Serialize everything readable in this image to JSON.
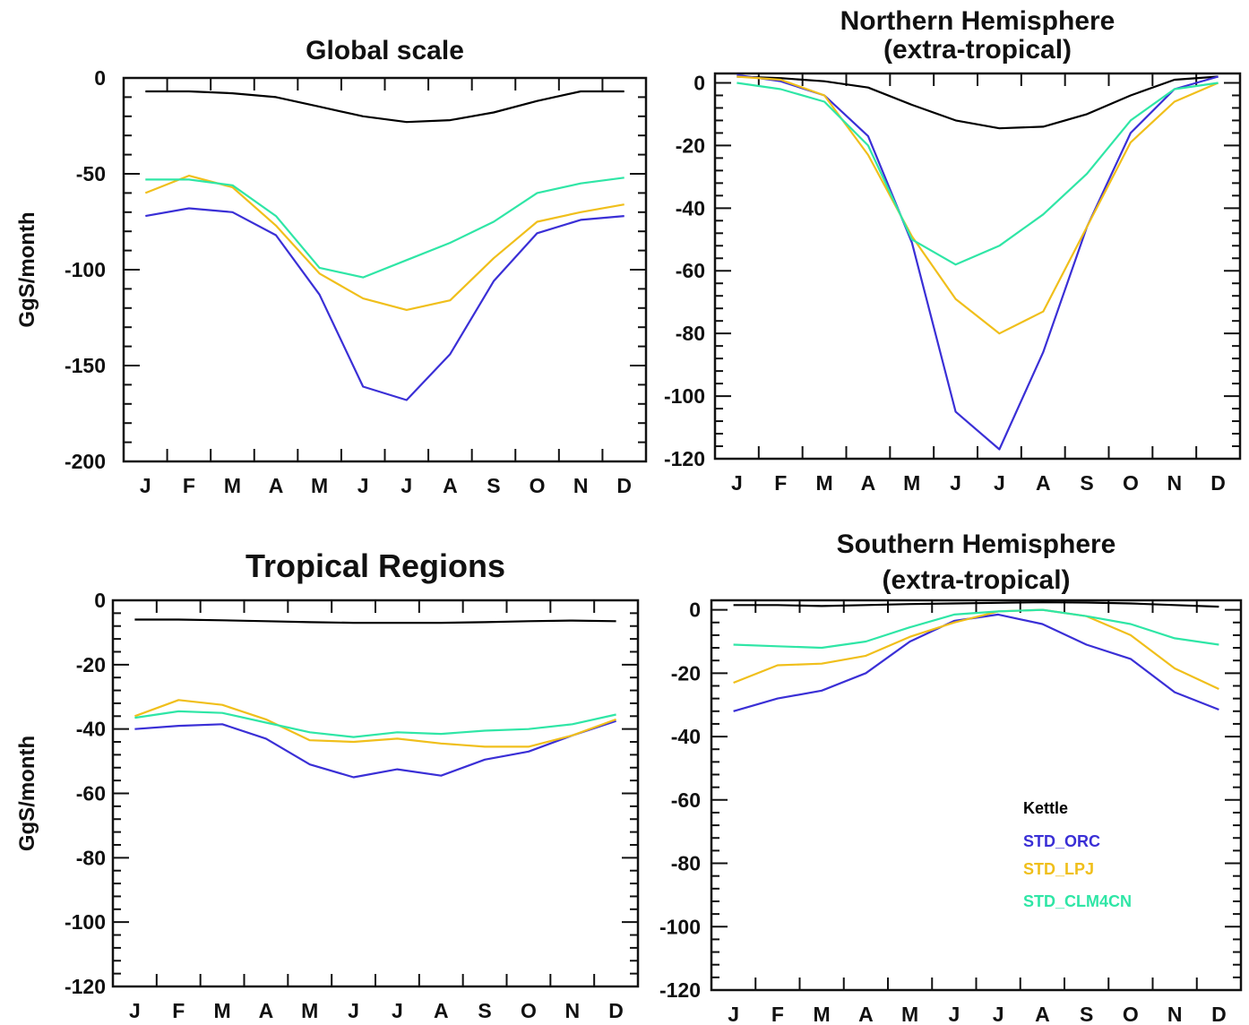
{
  "colors": {
    "Kettle": "#000000",
    "STD_ORC": "#3a2fd6",
    "STD_LPJ": "#f0bf1b",
    "STD_CLM4CN": "#2fe6a6"
  },
  "legend": [
    "Kettle",
    "STD_ORC",
    "STD_LPJ",
    "STD_CLM4CN"
  ],
  "chart_data": [
    {
      "type": "line",
      "title": [
        "Global scale"
      ],
      "ylabel": "GgS/month",
      "categories": [
        "J",
        "F",
        "M",
        "A",
        "M",
        "J",
        "J",
        "A",
        "S",
        "O",
        "N",
        "D"
      ],
      "ylim": [
        -200,
        0
      ],
      "yticks": [
        0,
        -50,
        -100,
        -150,
        -200
      ],
      "series": [
        {
          "name": "Kettle",
          "values": [
            -7,
            -7,
            -8,
            -10,
            -15,
            -20,
            -23,
            -22,
            -18,
            -12,
            -7,
            -7
          ]
        },
        {
          "name": "STD_ORC",
          "values": [
            -72,
            -68,
            -70,
            -82,
            -113,
            -161,
            -168,
            -144,
            -106,
            -81,
            -74,
            -72
          ]
        },
        {
          "name": "STD_LPJ",
          "values": [
            -60,
            -51,
            -57,
            -77,
            -102,
            -115,
            -121,
            -116,
            -94,
            -75,
            -70,
            -66
          ]
        },
        {
          "name": "STD_CLM4CN",
          "values": [
            -53,
            -53,
            -56,
            -72,
            -99,
            -104,
            -95,
            -86,
            -75,
            -60,
            -55,
            -52
          ]
        }
      ]
    },
    {
      "type": "line",
      "title": [
        "Northern Hemisphere",
        "(extra-tropical)"
      ],
      "ylabel": "",
      "categories": [
        "J",
        "F",
        "M",
        "A",
        "M",
        "J",
        "J",
        "A",
        "S",
        "O",
        "N",
        "D"
      ],
      "ylim": [
        -120,
        3
      ],
      "yticks": [
        0,
        -20,
        -40,
        -60,
        -80,
        -100,
        -120
      ],
      "series": [
        {
          "name": "Kettle",
          "values": [
            2,
            1.5,
            0.5,
            -1.5,
            -7,
            -12,
            -14.5,
            -14,
            -10,
            -4,
            1,
            2
          ]
        },
        {
          "name": "STD_ORC",
          "values": [
            2.5,
            0.5,
            -4,
            -17,
            -51,
            -105,
            -117,
            -86,
            -46,
            -16,
            -2,
            2
          ]
        },
        {
          "name": "STD_LPJ",
          "values": [
            2,
            1,
            -4,
            -23,
            -49,
            -69,
            -80,
            -73,
            -46,
            -19,
            -6,
            0
          ]
        },
        {
          "name": "STD_CLM4CN",
          "values": [
            0,
            -2,
            -6,
            -20,
            -50,
            -58,
            -52,
            -42,
            -29,
            -12,
            -2,
            0
          ]
        }
      ]
    },
    {
      "type": "line",
      "title": [
        "Tropical Regions"
      ],
      "ylabel": "GgS/month",
      "categories": [
        "J",
        "F",
        "M",
        "A",
        "M",
        "J",
        "J",
        "A",
        "S",
        "O",
        "N",
        "D"
      ],
      "ylim": [
        -120,
        0
      ],
      "yticks": [
        0,
        -20,
        -40,
        -60,
        -80,
        -100,
        -120
      ],
      "series": [
        {
          "name": "Kettle",
          "values": [
            -6,
            -6,
            -6.2,
            -6.5,
            -6.8,
            -7,
            -7,
            -7,
            -6.8,
            -6.5,
            -6.3,
            -6.5
          ]
        },
        {
          "name": "STD_ORC",
          "values": [
            -40,
            -39,
            -38.5,
            -43,
            -51,
            -55,
            -52.5,
            -54.5,
            -49.5,
            -47,
            -42,
            -37.5
          ]
        },
        {
          "name": "STD_LPJ",
          "values": [
            -36,
            -31,
            -32.5,
            -37,
            -43.5,
            -44,
            -43,
            -44.5,
            -45.5,
            -45.5,
            -42,
            -37
          ]
        },
        {
          "name": "STD_CLM4CN",
          "values": [
            -36.5,
            -34.5,
            -35,
            -38,
            -41,
            -42.5,
            -41,
            -41.5,
            -40.5,
            -40,
            -38.5,
            -35.5
          ]
        }
      ]
    },
    {
      "type": "line",
      "title": [
        "Southern Hemisphere",
        "(extra-tropical)"
      ],
      "ylabel": "",
      "categories": [
        "J",
        "F",
        "M",
        "A",
        "M",
        "J",
        "J",
        "A",
        "S",
        "O",
        "N",
        "D"
      ],
      "ylim": [
        -120,
        3
      ],
      "yticks": [
        0,
        -20,
        -40,
        -60,
        -80,
        -100,
        -120
      ],
      "series": [
        {
          "name": "Kettle",
          "values": [
            1.5,
            1.5,
            1.2,
            1.5,
            1.8,
            2,
            2.2,
            2.4,
            2.3,
            2,
            1.5,
            1
          ]
        },
        {
          "name": "STD_ORC",
          "values": [
            -32,
            -28,
            -25.5,
            -20,
            -10,
            -3.5,
            -1.5,
            -4.5,
            -11,
            -15.5,
            -26,
            -31.5
          ]
        },
        {
          "name": "STD_LPJ",
          "values": [
            -23,
            -17.5,
            -17,
            -14.5,
            -8.5,
            -4,
            -0.5,
            0,
            -2,
            -8,
            -18.5,
            -25
          ]
        },
        {
          "name": "STD_CLM4CN",
          "values": [
            -11,
            -11.5,
            -12,
            -10,
            -5.5,
            -1.5,
            -0.5,
            0,
            -2,
            -4.5,
            -9,
            -11
          ]
        }
      ]
    }
  ]
}
